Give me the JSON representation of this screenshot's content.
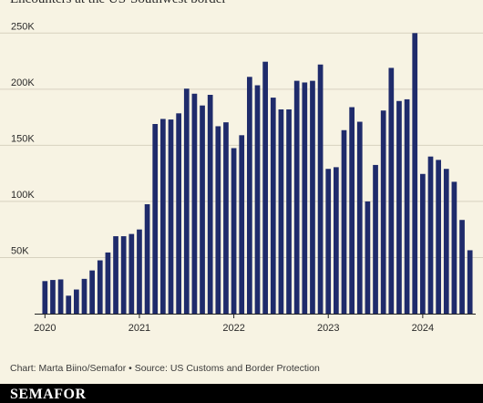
{
  "header": {
    "subtitle": "Encounters at the US-Southwest border"
  },
  "footer": {
    "credit": "Chart: Marta Biino/Semafor • Source: US Customs and Border Protection",
    "logo": "SEMAFOR"
  },
  "colors": {
    "bar": "#1f2b6b",
    "grid": "#d7d2c0",
    "background": "#f7f3e3",
    "footer": "#000000"
  },
  "chart_data": {
    "type": "bar",
    "title": "",
    "subtitle": "Encounters at the US-Southwest border",
    "xlabel": "",
    "ylabel": "",
    "x_ticks": [
      "2020",
      "2021",
      "2022",
      "2023",
      "2024"
    ],
    "y_ticks": [
      "50K",
      "100K",
      "150K",
      "200K",
      "250K"
    ],
    "ylim": [
      0,
      260000
    ],
    "grid": true,
    "categories": [
      "2020-01",
      "2020-02",
      "2020-03",
      "2020-04",
      "2020-05",
      "2020-06",
      "2020-07",
      "2020-08",
      "2020-09",
      "2020-10",
      "2020-11",
      "2020-12",
      "2021-01",
      "2021-02",
      "2021-03",
      "2021-04",
      "2021-05",
      "2021-06",
      "2021-07",
      "2021-08",
      "2021-09",
      "2021-10",
      "2021-11",
      "2021-12",
      "2022-01",
      "2022-02",
      "2022-03",
      "2022-04",
      "2022-05",
      "2022-06",
      "2022-07",
      "2022-08",
      "2022-09",
      "2022-10",
      "2022-11",
      "2022-12",
      "2023-01",
      "2023-02",
      "2023-03",
      "2023-04",
      "2023-05",
      "2023-06",
      "2023-07",
      "2023-08",
      "2023-09",
      "2023-10",
      "2023-11",
      "2023-12",
      "2024-01",
      "2024-02",
      "2024-03",
      "2024-04",
      "2024-05",
      "2024-06",
      "2024-07"
    ],
    "values": [
      29000,
      30000,
      30500,
      16000,
      21500,
      31000,
      38500,
      47500,
      54500,
      69000,
      69000,
      71000,
      75000,
      97500,
      169000,
      173500,
      173000,
      178500,
      200500,
      196000,
      185500,
      195000,
      167000,
      170500,
      147500,
      159000,
      211000,
      203500,
      224500,
      192500,
      182000,
      182000,
      207500,
      206000,
      207500,
      222000,
      129000,
      130500,
      163500,
      184000,
      171000,
      100000,
      132500,
      181000,
      219000,
      189500,
      191000,
      250000,
      124500,
      140000,
      137000,
      129000,
      117500,
      83500,
      56500
    ]
  }
}
